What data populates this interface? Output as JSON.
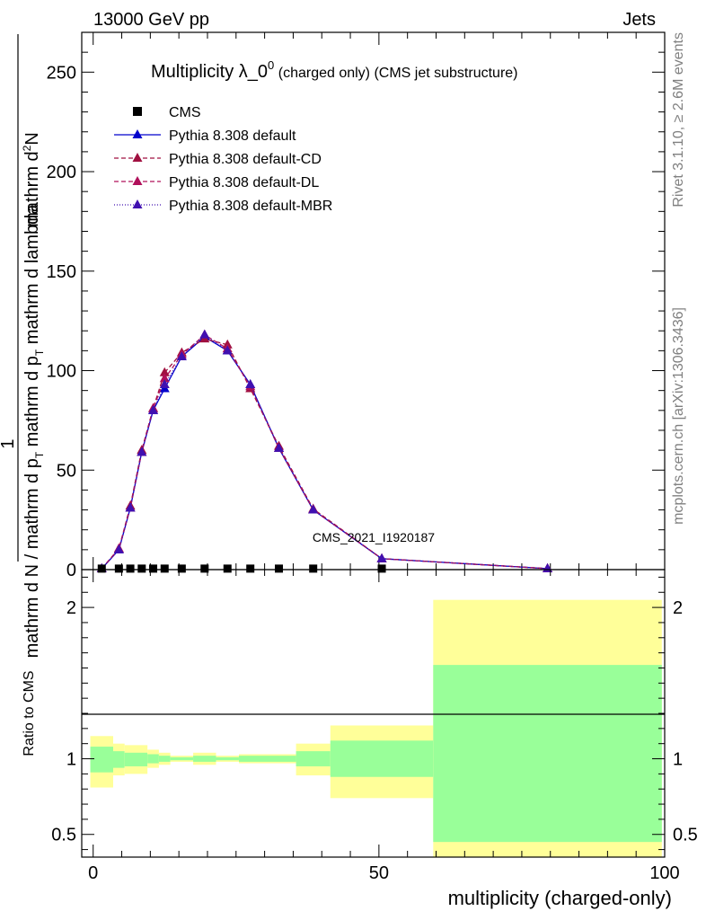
{
  "header": {
    "energy_label": "13000 GeV pp",
    "process_label": "Jets"
  },
  "side_labels": {
    "rivet": "Rivet 3.1.10, ≥ 2.6M events",
    "mcplots": "mcplots.cern.ch [arXiv:1306.3436]"
  },
  "watermark": "CMS_2021_I1920187",
  "chart_data": {
    "type": "line",
    "title": "Multiplicity λ_0⁰ (charged only) (CMS jet substructure)",
    "title_main": "Multiplicity λ_0",
    "title_sup": "0",
    "title_sub": "(charged only) (CMS jet substructure)",
    "xlabel": "multiplicity (charged-only)",
    "ylabel": "1/mathrm dN / mathrm d p_T dN/mathrm d p_T mathrm d lambda",
    "ylabel_numerator": "1",
    "ylabel_denominator": "mathrm d N / mathrm d p",
    "ylabel_denominator_sub": "T",
    "ylabel_frac_numerator": "mathrm d",
    "ylabel_frac_numerator_sup": "2",
    "ylabel_frac_numerator_end": "N",
    "ylabel_frac_denominator": "mathrm d p",
    "ylabel_frac_denominator_sub": "T",
    "ylabel_frac_denominator_end": " mathrm d lambda",
    "xlim": [
      -2,
      100
    ],
    "ylim": [
      0,
      270
    ],
    "x_ticks": [
      0,
      50,
      100
    ],
    "x_tick_labels": [
      "0",
      "50",
      "100"
    ],
    "y_ticks": [
      0,
      50,
      100,
      150,
      200,
      250
    ],
    "y_tick_labels": [
      "0",
      "50",
      "100",
      "150",
      "200",
      "250"
    ],
    "legend_position": "top-left",
    "legend": [
      {
        "name": "CMS",
        "color": "#000000",
        "marker": "square",
        "dash": ""
      },
      {
        "name": "Pythia 8.308 default",
        "color": "#0000cc",
        "marker": "triangle",
        "dash": ""
      },
      {
        "name": "Pythia 8.308 default-CD",
        "color": "#a01040",
        "marker": "triangle",
        "dash": "5,3"
      },
      {
        "name": "Pythia 8.308 default-DL",
        "color": "#b0105a",
        "marker": "triangle",
        "dash": "5,3"
      },
      {
        "name": "Pythia 8.308 default-MBR",
        "color": "#4010b0",
        "marker": "triangle",
        "dash": "1,2"
      }
    ],
    "cms": {
      "x": [
        1.5,
        4.5,
        6.5,
        8.5,
        10.5,
        12.5,
        15.5,
        19.5,
        23.5,
        27.5,
        32.5,
        38.5,
        50.5
      ],
      "y": [
        0.5,
        0.5,
        0.5,
        0.5,
        0.5,
        0.5,
        0.5,
        0.5,
        0.5,
        0.5,
        0.5,
        0.5,
        0.5
      ]
    },
    "series": [
      {
        "name": "Pythia 8.308 default",
        "color": "#0000cc",
        "dash": "",
        "x": [
          1.5,
          4.5,
          6.5,
          8.5,
          10.5,
          12.5,
          15.5,
          19.5,
          23.5,
          27.5,
          32.5,
          38.5,
          50.5,
          79.5
        ],
        "y": [
          0.5,
          10,
          31,
          59,
          80,
          91,
          107,
          117,
          110,
          93,
          61,
          30,
          5.5,
          0.5
        ]
      },
      {
        "name": "Pythia 8.308 default-CD",
        "color": "#a01040",
        "dash": "5,3",
        "x": [
          1.5,
          4.5,
          6.5,
          8.5,
          10.5,
          12.5,
          15.5,
          19.5,
          23.5,
          27.5,
          32.5,
          38.5,
          50.5,
          79.5
        ],
        "y": [
          0.5,
          10.5,
          32,
          60,
          81,
          99,
          109,
          116,
          113,
          91,
          62,
          30.5,
          5.5,
          0.5
        ]
      },
      {
        "name": "Pythia 8.308 default-DL",
        "color": "#b0105a",
        "dash": "5,3",
        "x": [
          1.5,
          4.5,
          6.5,
          8.5,
          10.5,
          12.5,
          15.5,
          19.5,
          23.5,
          27.5,
          32.5,
          38.5,
          50.5,
          79.5
        ],
        "y": [
          0.5,
          10.5,
          31,
          59,
          81,
          96,
          108,
          118,
          111,
          92,
          61,
          30,
          5.5,
          0.5
        ]
      },
      {
        "name": "Pythia 8.308 default-MBR",
        "color": "#4010b0",
        "dash": "1,2",
        "x": [
          1.5,
          4.5,
          6.5,
          8.5,
          10.5,
          12.5,
          15.5,
          19.5,
          23.5,
          27.5,
          32.5,
          38.5,
          50.5,
          79.5
        ],
        "y": [
          0.5,
          10,
          31,
          59,
          80,
          93,
          107,
          118,
          110,
          93,
          61,
          30,
          5.5,
          0.5
        ]
      }
    ],
    "ratio": {
      "ylabel": "Ratio to CMS",
      "ylim": [
        0.35,
        2.25
      ],
      "y_ticks": [
        0.5,
        1,
        2
      ],
      "y_tick_labels": [
        "0.5",
        "1",
        "2"
      ],
      "bins": [
        {
          "x0": -0.5,
          "x1": 3.5,
          "green": [
            0.91,
            1.08
          ],
          "yellow": [
            0.81,
            1.15
          ]
        },
        {
          "x0": 3.5,
          "x1": 5.5,
          "green": [
            0.94,
            1.05
          ],
          "yellow": [
            0.89,
            1.1
          ]
        },
        {
          "x0": 5.5,
          "x1": 9.5,
          "green": [
            0.95,
            1.04
          ],
          "yellow": [
            0.9,
            1.09
          ]
        },
        {
          "x0": 9.5,
          "x1": 11.5,
          "green": [
            0.97,
            1.03
          ],
          "yellow": [
            0.94,
            1.06
          ]
        },
        {
          "x0": 11.5,
          "x1": 13.5,
          "green": [
            0.98,
            1.02
          ],
          "yellow": [
            0.96,
            1.04
          ]
        },
        {
          "x0": 13.5,
          "x1": 17.5,
          "green": [
            0.99,
            1.01
          ],
          "yellow": [
            0.98,
            1.02
          ]
        },
        {
          "x0": 17.5,
          "x1": 21.5,
          "green": [
            0.98,
            1.02
          ],
          "yellow": [
            0.96,
            1.04
          ]
        },
        {
          "x0": 21.5,
          "x1": 25.5,
          "green": [
            0.99,
            1.01
          ],
          "yellow": [
            0.98,
            1.02
          ]
        },
        {
          "x0": 25.5,
          "x1": 35.5,
          "green": [
            0.98,
            1.02
          ],
          "yellow": [
            0.97,
            1.03
          ]
        },
        {
          "x0": 35.5,
          "x1": 41.5,
          "green": [
            0.95,
            1.05
          ],
          "yellow": [
            0.89,
            1.1
          ]
        },
        {
          "x0": 41.5,
          "x1": 59.5,
          "green": [
            0.88,
            1.12
          ],
          "yellow": [
            0.74,
            1.22
          ]
        },
        {
          "x0": 59.5,
          "x1": 99.5,
          "green": [
            0.45,
            1.62
          ],
          "yellow": [
            0.35,
            2.05
          ]
        }
      ]
    }
  }
}
